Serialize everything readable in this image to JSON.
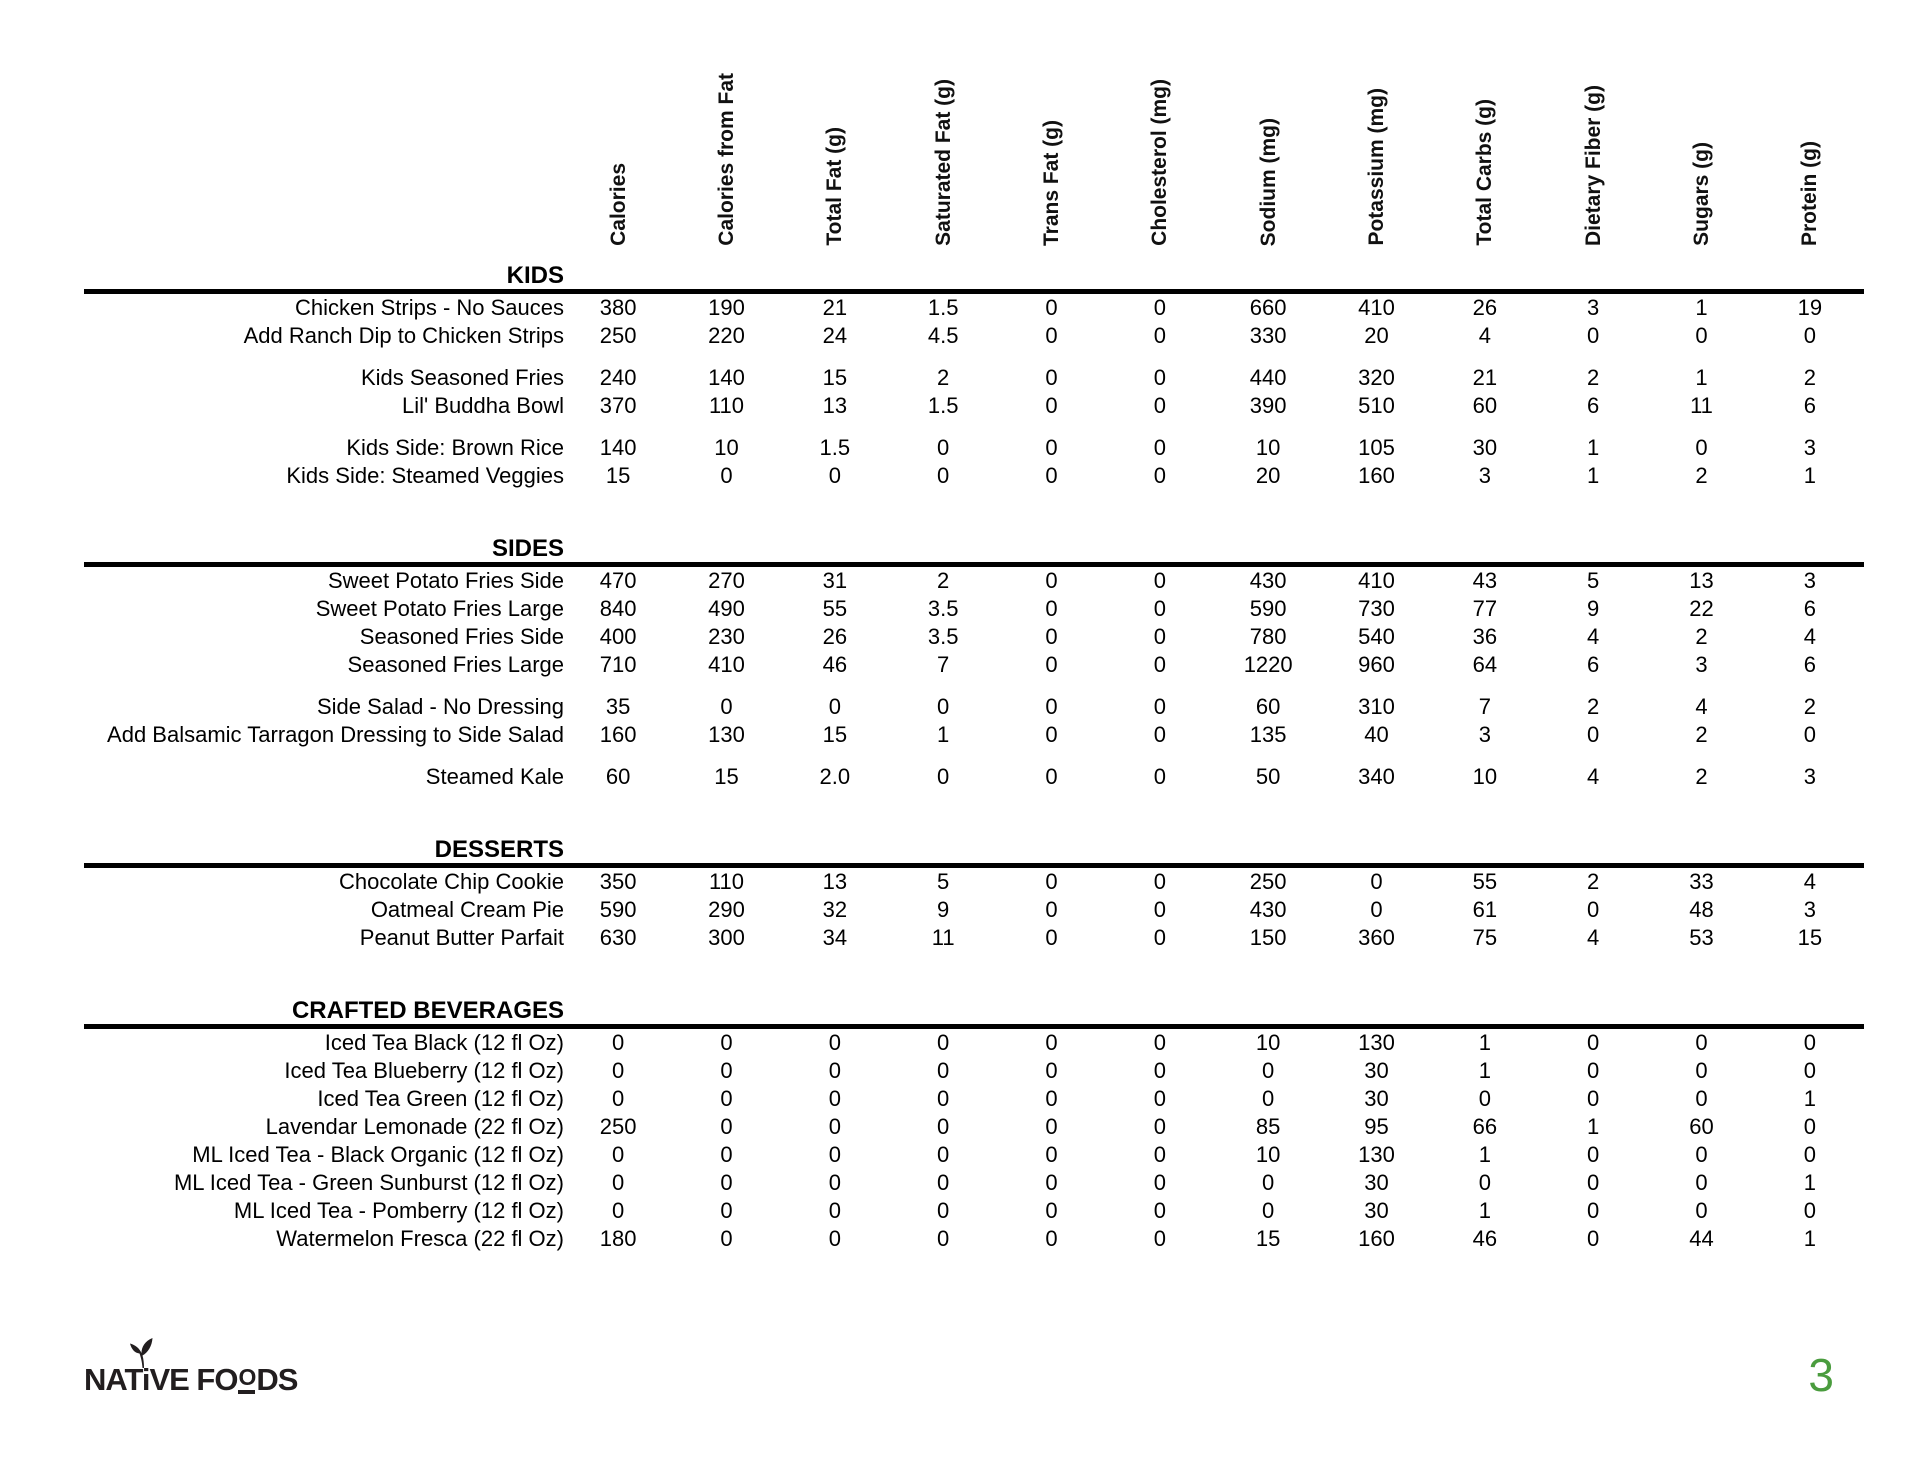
{
  "page": {
    "number": "3",
    "accent_color": "#4a9c3e"
  },
  "logo": {
    "part1": "NATiVE FO",
    "o": "O",
    "part2": "DS",
    "icon": "leaf-sprout"
  },
  "table": {
    "columns": [
      "Calories",
      "Calories from Fat",
      "Total Fat (g)",
      "Saturated Fat (g)",
      "Trans Fat (g)",
      "Cholesterol (mg)",
      "Sodium (mg)",
      "Potassium (mg)",
      "Total Carbs (g)",
      "Dietary Fiber (g)",
      "Sugars (g)",
      "Protein (g)"
    ],
    "sections": [
      {
        "title": "KIDS",
        "rows": [
          {
            "name": "Chicken Strips - No Sauces",
            "values": [
              "380",
              "190",
              "21",
              "1.5",
              "0",
              "0",
              "660",
              "410",
              "26",
              "3",
              "1",
              "19"
            ]
          },
          {
            "name": "Add Ranch Dip to Chicken Strips",
            "values": [
              "250",
              "220",
              "24",
              "4.5",
              "0",
              "0",
              "330",
              "20",
              "4",
              "0",
              "0",
              "0"
            ]
          },
          {
            "name": "Kids Seasoned Fries",
            "gap_before": true,
            "values": [
              "240",
              "140",
              "15",
              "2",
              "0",
              "0",
              "440",
              "320",
              "21",
              "2",
              "1",
              "2"
            ]
          },
          {
            "name": "Lil' Buddha Bowl",
            "values": [
              "370",
              "110",
              "13",
              "1.5",
              "0",
              "0",
              "390",
              "510",
              "60",
              "6",
              "11",
              "6"
            ]
          },
          {
            "name": "Kids Side: Brown Rice",
            "gap_before": true,
            "values": [
              "140",
              "10",
              "1.5",
              "0",
              "0",
              "0",
              "10",
              "105",
              "30",
              "1",
              "0",
              "3"
            ]
          },
          {
            "name": "Kids Side: Steamed Veggies",
            "values": [
              "15",
              "0",
              "0",
              "0",
              "0",
              "0",
              "20",
              "160",
              "3",
              "1",
              "2",
              "1"
            ]
          }
        ]
      },
      {
        "title": "SIDES",
        "rows": [
          {
            "name": "Sweet Potato Fries Side",
            "values": [
              "470",
              "270",
              "31",
              "2",
              "0",
              "0",
              "430",
              "410",
              "43",
              "5",
              "13",
              "3"
            ]
          },
          {
            "name": "Sweet Potato Fries Large",
            "values": [
              "840",
              "490",
              "55",
              "3.5",
              "0",
              "0",
              "590",
              "730",
              "77",
              "9",
              "22",
              "6"
            ]
          },
          {
            "name": "Seasoned Fries Side",
            "values": [
              "400",
              "230",
              "26",
              "3.5",
              "0",
              "0",
              "780",
              "540",
              "36",
              "4",
              "2",
              "4"
            ]
          },
          {
            "name": "Seasoned Fries Large",
            "values": [
              "710",
              "410",
              "46",
              "7",
              "0",
              "0",
              "1220",
              "960",
              "64",
              "6",
              "3",
              "6"
            ]
          },
          {
            "name": "Side Salad - No Dressing",
            "gap_before": true,
            "values": [
              "35",
              "0",
              "0",
              "0",
              "0",
              "0",
              "60",
              "310",
              "7",
              "2",
              "4",
              "2"
            ]
          },
          {
            "name": "Add Balsamic Tarragon Dressing to Side Salad",
            "values": [
              "160",
              "130",
              "15",
              "1",
              "0",
              "0",
              "135",
              "40",
              "3",
              "0",
              "2",
              "0"
            ]
          },
          {
            "name": "Steamed Kale",
            "gap_before": true,
            "values": [
              "60",
              "15",
              "2.0",
              "0",
              "0",
              "0",
              "50",
              "340",
              "10",
              "4",
              "2",
              "3"
            ]
          }
        ]
      },
      {
        "title": "DESSERTS",
        "rows": [
          {
            "name": "Chocolate Chip Cookie",
            "values": [
              "350",
              "110",
              "13",
              "5",
              "0",
              "0",
              "250",
              "0",
              "55",
              "2",
              "33",
              "4"
            ]
          },
          {
            "name": "Oatmeal Cream Pie",
            "values": [
              "590",
              "290",
              "32",
              "9",
              "0",
              "0",
              "430",
              "0",
              "61",
              "0",
              "48",
              "3"
            ]
          },
          {
            "name": "Peanut Butter Parfait",
            "values": [
              "630",
              "300",
              "34",
              "11",
              "0",
              "0",
              "150",
              "360",
              "75",
              "4",
              "53",
              "15"
            ]
          }
        ]
      },
      {
        "title": "CRAFTED BEVERAGES",
        "rows": [
          {
            "name": "Iced Tea Black (12 fl Oz)",
            "values": [
              "0",
              "0",
              "0",
              "0",
              "0",
              "0",
              "10",
              "130",
              "1",
              "0",
              "0",
              "0"
            ]
          },
          {
            "name": "Iced Tea Blueberry (12 fl Oz)",
            "values": [
              "0",
              "0",
              "0",
              "0",
              "0",
              "0",
              "0",
              "30",
              "1",
              "0",
              "0",
              "0"
            ]
          },
          {
            "name": "Iced Tea Green (12 fl Oz)",
            "values": [
              "0",
              "0",
              "0",
              "0",
              "0",
              "0",
              "0",
              "30",
              "0",
              "0",
              "0",
              "1"
            ]
          },
          {
            "name": "Lavendar Lemonade (22 fl Oz)",
            "values": [
              "250",
              "0",
              "0",
              "0",
              "0",
              "0",
              "85",
              "95",
              "66",
              "1",
              "60",
              "0"
            ]
          },
          {
            "name": "ML Iced Tea - Black Organic (12 fl Oz)",
            "values": [
              "0",
              "0",
              "0",
              "0",
              "0",
              "0",
              "10",
              "130",
              "1",
              "0",
              "0",
              "0"
            ]
          },
          {
            "name": "ML Iced Tea - Green Sunburst (12 fl Oz)",
            "values": [
              "0",
              "0",
              "0",
              "0",
              "0",
              "0",
              "0",
              "30",
              "0",
              "0",
              "0",
              "1"
            ]
          },
          {
            "name": "ML Iced Tea - Pomberry (12 fl Oz)",
            "values": [
              "0",
              "0",
              "0",
              "0",
              "0",
              "0",
              "0",
              "30",
              "1",
              "0",
              "0",
              "0"
            ]
          },
          {
            "name": "Watermelon Fresca (22 fl Oz)",
            "values": [
              "180",
              "0",
              "0",
              "0",
              "0",
              "0",
              "15",
              "160",
              "46",
              "0",
              "44",
              "1"
            ]
          }
        ]
      }
    ]
  }
}
